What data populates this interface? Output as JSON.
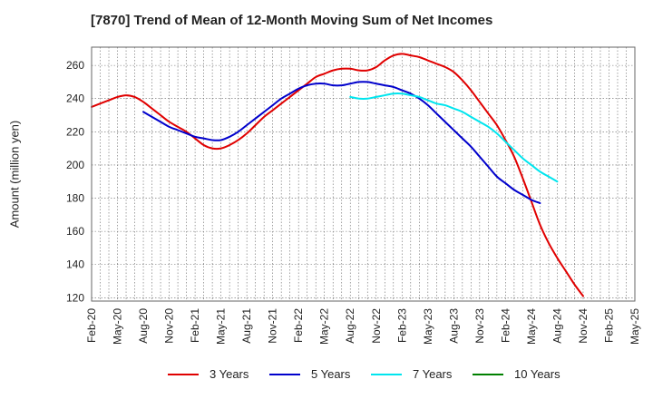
{
  "colors": {
    "three": "#e00000",
    "five": "#0000cc",
    "seven": "#00e5ee",
    "ten": "#008000",
    "grid": "#666666"
  },
  "chart_data": {
    "type": "line",
    "title": "[7870]  Trend of Mean of 12-Month Moving Sum of Net Incomes",
    "xlabel": "",
    "ylabel": "Amount (million yen)",
    "ylim": [
      118,
      271
    ],
    "y_ticks": [
      120,
      140,
      160,
      180,
      200,
      220,
      240,
      260
    ],
    "x_tick_labels": [
      "Feb-20",
      "May-20",
      "Aug-20",
      "Nov-20",
      "Feb-21",
      "May-21",
      "Aug-21",
      "Nov-21",
      "Feb-22",
      "May-22",
      "Aug-22",
      "Nov-22",
      "Feb-23",
      "May-23",
      "Aug-23",
      "Nov-23",
      "Feb-24",
      "May-24",
      "Aug-24",
      "Nov-24",
      "Feb-25",
      "May-25"
    ],
    "grid": true,
    "legend_position": "bottom",
    "series": [
      {
        "name": "3 Years",
        "color": "#e00000",
        "start": "Feb-20",
        "values": [
          235,
          237,
          239,
          241,
          242,
          241,
          238,
          234,
          230,
          226,
          223,
          220,
          216,
          212,
          210,
          210,
          212,
          215,
          219,
          224,
          229,
          233,
          237,
          241,
          245,
          249,
          253,
          255,
          257,
          258,
          258,
          257,
          257,
          259,
          263,
          266,
          267,
          266,
          265,
          263,
          261,
          259,
          256,
          251,
          245,
          238,
          231,
          224,
          215,
          205,
          192,
          178,
          164,
          153,
          144,
          136,
          128,
          121
        ]
      },
      {
        "name": "5 Years",
        "color": "#0000cc",
        "start": "Aug-20",
        "values": [
          232,
          229,
          226,
          223,
          221,
          219,
          217,
          216,
          215,
          215,
          217,
          220,
          224,
          228,
          232,
          236,
          240,
          243,
          246,
          248,
          249,
          249,
          248,
          248,
          249,
          250,
          250,
          249,
          248,
          247,
          245,
          243,
          240,
          236,
          231,
          226,
          221,
          216,
          211,
          205,
          199,
          193,
          189,
          185,
          182,
          179,
          177
        ]
      },
      {
        "name": "7 Years",
        "color": "#00e5ee",
        "start": "Aug-22",
        "values": [
          241,
          240,
          240,
          241,
          242,
          243,
          243,
          242,
          241,
          239,
          237,
          236,
          234,
          232,
          229,
          226,
          223,
          219,
          214,
          209,
          204,
          200,
          196,
          193,
          190
        ]
      },
      {
        "name": "10 Years",
        "color": "#008000",
        "start": "",
        "values": []
      }
    ]
  }
}
